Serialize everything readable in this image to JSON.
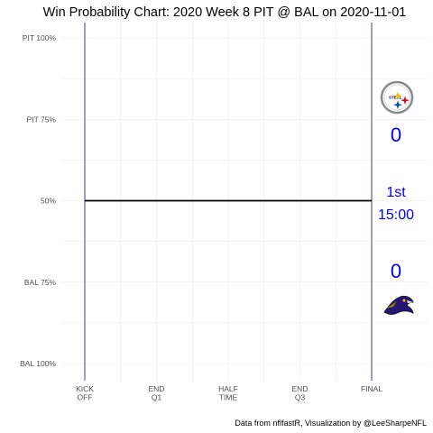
{
  "chart_data": {
    "type": "line",
    "title": "Win Probability Chart: 2020 Week 8 PIT @ BAL on 2020-11-01",
    "caption": "Data from nflfastR, Visualization by @LeeSharpeNFL",
    "xlabel": "",
    "ylabel": "",
    "xlim": [
      0,
      3600
    ],
    "ylim": [
      0,
      1
    ],
    "grid": true,
    "x_ticks": [
      {
        "value": 0,
        "lines": [
          "KICK",
          "OFF"
        ]
      },
      {
        "value": 900,
        "lines": [
          "END",
          "Q1"
        ]
      },
      {
        "value": 1800,
        "lines": [
          "HALF",
          "TIME"
        ]
      },
      {
        "value": 2700,
        "lines": [
          "END",
          "Q3"
        ]
      },
      {
        "value": 3600,
        "lines": [
          "FINAL"
        ]
      }
    ],
    "y_ticks": [
      {
        "value": 1.0,
        "label": "PIT 100%"
      },
      {
        "value": 0.75,
        "label": "PIT 75%"
      },
      {
        "value": 0.5,
        "label": "50%"
      },
      {
        "value": 0.25,
        "label": "BAL 75%"
      },
      {
        "value": 0.0,
        "label": "BAL 100%"
      }
    ],
    "vlines": [
      {
        "x": 0,
        "color": "#2b2b8c"
      },
      {
        "x": 3600,
        "color": "#2b2b8c"
      }
    ],
    "series": [
      {
        "color": "#000000",
        "x": [
          0,
          3600
        ],
        "y": [
          0.5,
          0.5
        ]
      }
    ],
    "scoreboard": {
      "away_team": "PIT",
      "home_team": "BAL",
      "away_score": "0",
      "home_score": "0",
      "quarter": "1st",
      "clock": "15:00",
      "text_color": "#0000ff"
    },
    "colors": {
      "pit_black": "#101820",
      "pit_gold": "#FFB612",
      "pit_red": "#C60C30",
      "pit_blue": "#00539B",
      "bal_purple": "#241773",
      "bal_gold": "#9E7C0C"
    },
    "icons": {
      "away_logo": "steelers-logo-icon",
      "home_logo": "ravens-logo-icon"
    }
  }
}
